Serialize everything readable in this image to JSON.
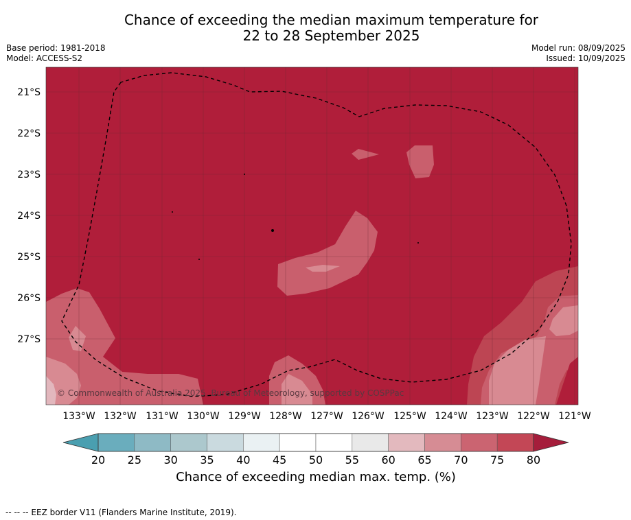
{
  "header": {
    "title_line1": "Chance of exceeding the median maximum temperature for",
    "title_line2": "22 to 28 September 2025",
    "base_period": "Base period: 1981-2018",
    "model": "Model: ACCESS-S2",
    "model_run": "Model run: 08/09/2025",
    "issued": "Issued: 10/09/2025"
  },
  "map": {
    "lat_labels": [
      "21°S",
      "22°S",
      "23°S",
      "24°S",
      "25°S",
      "26°S",
      "27°S"
    ],
    "lon_labels": [
      "133°W",
      "132°W",
      "131°W",
      "130°W",
      "129°W",
      "128°W",
      "127°W",
      "126°W",
      "125°W",
      "124°W",
      "123°W",
      "122°W",
      "121°W"
    ],
    "copyright": "© Commonwealth of Australia 2025, Bureau of Meteorology, supported by COSPPac",
    "background_class": "80+",
    "colors": {
      "c80plus": "#b01e3a",
      "c75_80": "#bd4553",
      "c70_75": "#c95f6d",
      "c65_70": "#d88a92",
      "c60_65": "#e2b7bd",
      "eez_line": "#000000"
    }
  },
  "colorbar": {
    "ticks": [
      "20",
      "25",
      "30",
      "35",
      "40",
      "45",
      "50",
      "55",
      "60",
      "65",
      "70",
      "75",
      "80"
    ],
    "bin_colors": [
      "#6aadbd",
      "#8ebac5",
      "#acc8cd",
      "#cadadf",
      "#eaf1f3",
      "#ffffff",
      "#ffffff",
      "#e9e9e9",
      "#e3b9be",
      "#d68c94",
      "#cb6471",
      "#c34756"
    ],
    "under_color": "#4a9fb0",
    "over_color": "#a51d3b",
    "label": "Chance of exceeding median max. temp. (%)"
  },
  "footnote": "--  --  -- EEZ border V11 (Flanders Marine Institute, 2019)."
}
